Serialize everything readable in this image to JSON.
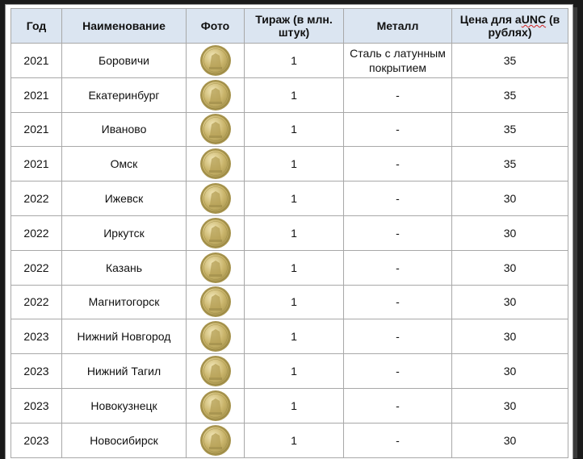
{
  "table": {
    "headers": {
      "year": "Год",
      "name": "Наименование",
      "photo": "Фото",
      "tirazh": "Тираж (в млн. штук)",
      "metal": "Металл",
      "price_prefix": "Цена  для ",
      "price_a": "a",
      "price_unc": "UNC",
      "price_suffix": " (в рублях)"
    },
    "rows": [
      {
        "year": "2021",
        "name": "Боровичи",
        "coin": "coin-image",
        "tirazh": "1",
        "metal": "Сталь с латунным покрытием",
        "price": "35"
      },
      {
        "year": "2021",
        "name": "Екатеринбург",
        "coin": "coin-image",
        "tirazh": "1",
        "metal": "-",
        "price": "35"
      },
      {
        "year": "2021",
        "name": "Иваново",
        "coin": "coin-image",
        "tirazh": "1",
        "metal": "-",
        "price": "35"
      },
      {
        "year": "2021",
        "name": "Омск",
        "coin": "coin-image",
        "tirazh": "1",
        "metal": "-",
        "price": "35"
      },
      {
        "year": "2022",
        "name": "Ижевск",
        "coin": "coin-image",
        "tirazh": "1",
        "metal": "-",
        "price": "30"
      },
      {
        "year": "2022",
        "name": "Иркутск",
        "coin": "coin-image",
        "tirazh": "1",
        "metal": "-",
        "price": "30"
      },
      {
        "year": "2022",
        "name": "Казань",
        "coin": "coin-image",
        "tirazh": "1",
        "metal": "-",
        "price": "30"
      },
      {
        "year": "2022",
        "name": "Магнитогорск",
        "coin": "coin-image",
        "tirazh": "1",
        "metal": "-",
        "price": "30"
      },
      {
        "year": "2023",
        "name": "Нижний Новгород",
        "coin": "coin-image",
        "tirazh": "1",
        "metal": "-",
        "price": "30"
      },
      {
        "year": "2023",
        "name": "Нижний Тагил",
        "coin": "coin-image",
        "tirazh": "1",
        "metal": "-",
        "price": "30"
      },
      {
        "year": "2023",
        "name": "Новокузнецк",
        "coin": "coin-image",
        "tirazh": "1",
        "metal": "-",
        "price": "30"
      },
      {
        "year": "2023",
        "name": "Новосибирск",
        "coin": "coin-image",
        "tirazh": "1",
        "metal": "-",
        "price": "30"
      }
    ]
  },
  "colors": {
    "header_bg": "#dbe5f1",
    "coin_gold": "#c9b46a",
    "coin_rim": "#a8954f"
  }
}
